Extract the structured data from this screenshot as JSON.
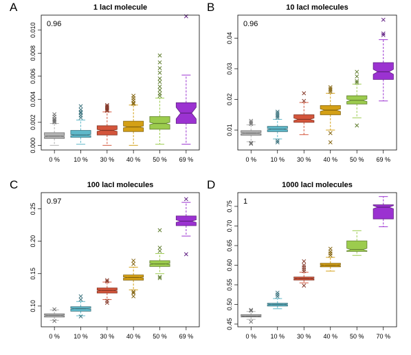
{
  "chart_data": [
    {
      "type": "boxplot",
      "panel": "A",
      "title": "1 lacI molecule",
      "annotation": "0.96",
      "categories": [
        "0 %",
        "10 %",
        "30 %",
        "40 %",
        "50 %",
        "69 %"
      ],
      "colors": [
        "#b3b3b3",
        "#5fb8c9",
        "#d4553b",
        "#d4a016",
        "#9ccc4e",
        "#9b32d1"
      ],
      "ylim": [
        -0.0004,
        0.0113
      ],
      "yticks": [
        0.0,
        0.002,
        0.004,
        0.006,
        0.008,
        0.01
      ],
      "ytick_labels": [
        "0.000",
        "0.002",
        "0.004",
        "0.006",
        "0.008",
        "0.010"
      ],
      "boxes": [
        {
          "whisker_low": 0.0,
          "q1": 0.0006,
          "median": 0.0008,
          "q3": 0.0011,
          "whisker_high": 0.0019,
          "notch": 5e-05,
          "outliers": [
            0.002,
            0.0021,
            0.0022,
            0.0023,
            0.0025,
            0.0027
          ]
        },
        {
          "whisker_low": 0.0001,
          "q1": 0.0007,
          "median": 0.0009,
          "q3": 0.0013,
          "whisker_high": 0.0022,
          "notch": 5e-05,
          "outliers": [
            0.0024,
            0.0026,
            0.0028,
            0.0029,
            0.0031,
            0.0034
          ]
        },
        {
          "whisker_low": 0.0,
          "q1": 0.0009,
          "median": 0.0013,
          "q3": 0.0017,
          "whisker_high": 0.0029,
          "notch": 8e-05,
          "outliers": [
            0.003,
            0.0031,
            0.0032,
            0.0033,
            0.0034,
            0.0035
          ]
        },
        {
          "whisker_low": 0.0,
          "q1": 0.0012,
          "median": 0.0016,
          "q3": 0.0021,
          "whisker_high": 0.0035,
          "notch": 8e-05,
          "outliers": [
            0.0036,
            0.0037,
            0.0039,
            0.0041,
            0.0043
          ]
        },
        {
          "whisker_low": 0.0001,
          "q1": 0.0014,
          "median": 0.0019,
          "q3": 0.0025,
          "whisker_high": 0.0041,
          "notch": 0.0001,
          "outliers": [
            0.0043,
            0.0045,
            0.0048,
            0.0051,
            0.0055,
            0.0058,
            0.0063,
            0.0067,
            0.0072,
            0.0078
          ]
        },
        {
          "whisker_low": 0.0001,
          "q1": 0.0019,
          "median": 0.0028,
          "q3": 0.0037,
          "whisker_high": 0.0061,
          "notch": 0.0005,
          "outliers": [
            0.0112
          ]
        }
      ]
    },
    {
      "type": "boxplot",
      "panel": "B",
      "title": "10 lacI molecules",
      "annotation": "0.96",
      "categories": [
        "0 %",
        "10 %",
        "30 %",
        "40 %",
        "50 %",
        "69 %"
      ],
      "colors": [
        "#b3b3b3",
        "#5fb8c9",
        "#d4553b",
        "#d4a016",
        "#9ccc4e",
        "#9b32d1"
      ],
      "ylim": [
        0.0035,
        0.0475
      ],
      "yticks": [
        0.01,
        0.02,
        0.03,
        0.04
      ],
      "ytick_labels": [
        "0.01",
        "0.02",
        "0.03",
        "0.04"
      ],
      "boxes": [
        {
          "whisker_low": 0.0062,
          "q1": 0.0083,
          "median": 0.009,
          "q3": 0.0098,
          "whisker_high": 0.0117,
          "notch": 0.0002,
          "outliers": [
            0.0055,
            0.0058,
            0.012,
            0.0125,
            0.013
          ]
        },
        {
          "whisker_low": 0.0071,
          "q1": 0.0095,
          "median": 0.0103,
          "q3": 0.0112,
          "whisker_high": 0.0135,
          "notch": 0.0002,
          "outliers": [
            0.006,
            0.0065,
            0.014,
            0.0145,
            0.015,
            0.0155,
            0.016
          ]
        },
        {
          "whisker_low": 0.0085,
          "q1": 0.0125,
          "median": 0.0135,
          "q3": 0.015,
          "whisker_high": 0.019,
          "notch": 0.0004,
          "outliers": [
            0.0195,
            0.022
          ]
        },
        {
          "whisker_low": 0.01,
          "q1": 0.015,
          "median": 0.0165,
          "q3": 0.018,
          "whisker_high": 0.022,
          "notch": 0.0004,
          "outliers": [
            0.006,
            0.009,
            0.0225,
            0.023,
            0.0235,
            0.024
          ]
        },
        {
          "whisker_low": 0.014,
          "q1": 0.0185,
          "median": 0.0197,
          "q3": 0.0212,
          "whisker_high": 0.025,
          "notch": 0.0004,
          "outliers": [
            0.0115,
            0.0255,
            0.026,
            0.0275,
            0.029
          ]
        },
        {
          "whisker_low": 0.0195,
          "q1": 0.0265,
          "median": 0.029,
          "q3": 0.032,
          "whisker_high": 0.0395,
          "notch": 0.0008,
          "outliers": [
            0.041,
            0.0415,
            0.046
          ]
        }
      ]
    },
    {
      "type": "boxplot",
      "panel": "C",
      "title": "100 lacI molecules",
      "annotation": "0.97",
      "categories": [
        "0 %",
        "10 %",
        "30 %",
        "40 %",
        "50 %",
        "69 %"
      ],
      "colors": [
        "#b3b3b3",
        "#5fb8c9",
        "#d4553b",
        "#d4a016",
        "#9ccc4e",
        "#9b32d1"
      ],
      "ylim": [
        0.068,
        0.275
      ],
      "yticks": [
        0.1,
        0.15,
        0.2,
        0.25
      ],
      "ytick_labels": [
        "0.10",
        "0.15",
        "0.20",
        "0.25"
      ],
      "boxes": [
        {
          "whisker_low": 0.078,
          "q1": 0.083,
          "median": 0.0855,
          "q3": 0.088,
          "whisker_high": 0.094,
          "notch": 0.0007,
          "outliers": [
            0.077,
            0.095
          ]
        },
        {
          "whisker_low": 0.085,
          "q1": 0.092,
          "median": 0.096,
          "q3": 0.099,
          "whisker_high": 0.107,
          "notch": 0.0007,
          "outliers": [
            0.084,
            0.11,
            0.115
          ]
        },
        {
          "whisker_low": 0.11,
          "q1": 0.12,
          "median": 0.124,
          "q3": 0.128,
          "whisker_high": 0.137,
          "notch": 0.0008,
          "outliers": [
            0.105,
            0.108,
            0.138,
            0.14
          ]
        },
        {
          "whisker_low": 0.125,
          "q1": 0.14,
          "median": 0.144,
          "q3": 0.148,
          "whisker_high": 0.16,
          "notch": 0.0008,
          "outliers": [
            0.115,
            0.12,
            0.122,
            0.165,
            0.17
          ]
        },
        {
          "whisker_low": 0.15,
          "q1": 0.161,
          "median": 0.165,
          "q3": 0.17,
          "whisker_high": 0.181,
          "notch": 0.0008,
          "outliers": [
            0.143,
            0.145,
            0.185,
            0.19,
            0.217
          ]
        },
        {
          "whisker_low": 0.208,
          "q1": 0.224,
          "median": 0.231,
          "q3": 0.239,
          "whisker_high": 0.26,
          "notch": 0.002,
          "outliers": [
            0.18,
            0.265
          ]
        }
      ]
    },
    {
      "type": "boxplot",
      "panel": "D",
      "title": "1000 lacI molecules",
      "annotation": "1",
      "categories": [
        "0 %",
        "10 %",
        "30 %",
        "40 %",
        "50 %",
        "70 %"
      ],
      "colors": [
        "#b3b3b3",
        "#5fb8c9",
        "#d4553b",
        "#d4a016",
        "#9ccc4e",
        "#9b32d1"
      ],
      "ylim": [
        0.443,
        0.785
      ],
      "yticks": [
        0.45,
        0.5,
        0.55,
        0.6,
        0.65,
        0.7,
        0.75
      ],
      "ytick_labels": [
        "0.45",
        "0.50",
        "0.55",
        "0.60",
        "0.65",
        "0.70",
        "0.75"
      ],
      "boxes": [
        {
          "whisker_low": 0.462,
          "q1": 0.468,
          "median": 0.47,
          "q3": 0.474,
          "whisker_high": 0.482,
          "notch": 0.001,
          "outliers": [
            0.456,
            0.484,
            0.486
          ]
        },
        {
          "whisker_low": 0.489,
          "q1": 0.496,
          "median": 0.5,
          "q3": 0.503,
          "whisker_high": 0.515,
          "notch": 0.001,
          "outliers": [
            0.52,
            0.525,
            0.53
          ]
        },
        {
          "whisker_low": 0.555,
          "q1": 0.562,
          "median": 0.566,
          "q3": 0.57,
          "whisker_high": 0.582,
          "notch": 0.001,
          "outliers": [
            0.548,
            0.585,
            0.59,
            0.595,
            0.6,
            0.61
          ]
        },
        {
          "whisker_low": 0.585,
          "q1": 0.596,
          "median": 0.6,
          "q3": 0.605,
          "whisker_high": 0.62,
          "notch": 0.001,
          "outliers": [
            0.625,
            0.63,
            0.635,
            0.642
          ]
        },
        {
          "whisker_low": 0.625,
          "q1": 0.635,
          "median": 0.64,
          "q3": 0.662,
          "whisker_high": 0.688,
          "notch": 0.003,
          "outliers": []
        },
        {
          "whisker_low": 0.698,
          "q1": 0.718,
          "median": 0.748,
          "q3": 0.754,
          "whisker_high": 0.775,
          "notch": 0.004,
          "outliers": []
        }
      ]
    }
  ]
}
